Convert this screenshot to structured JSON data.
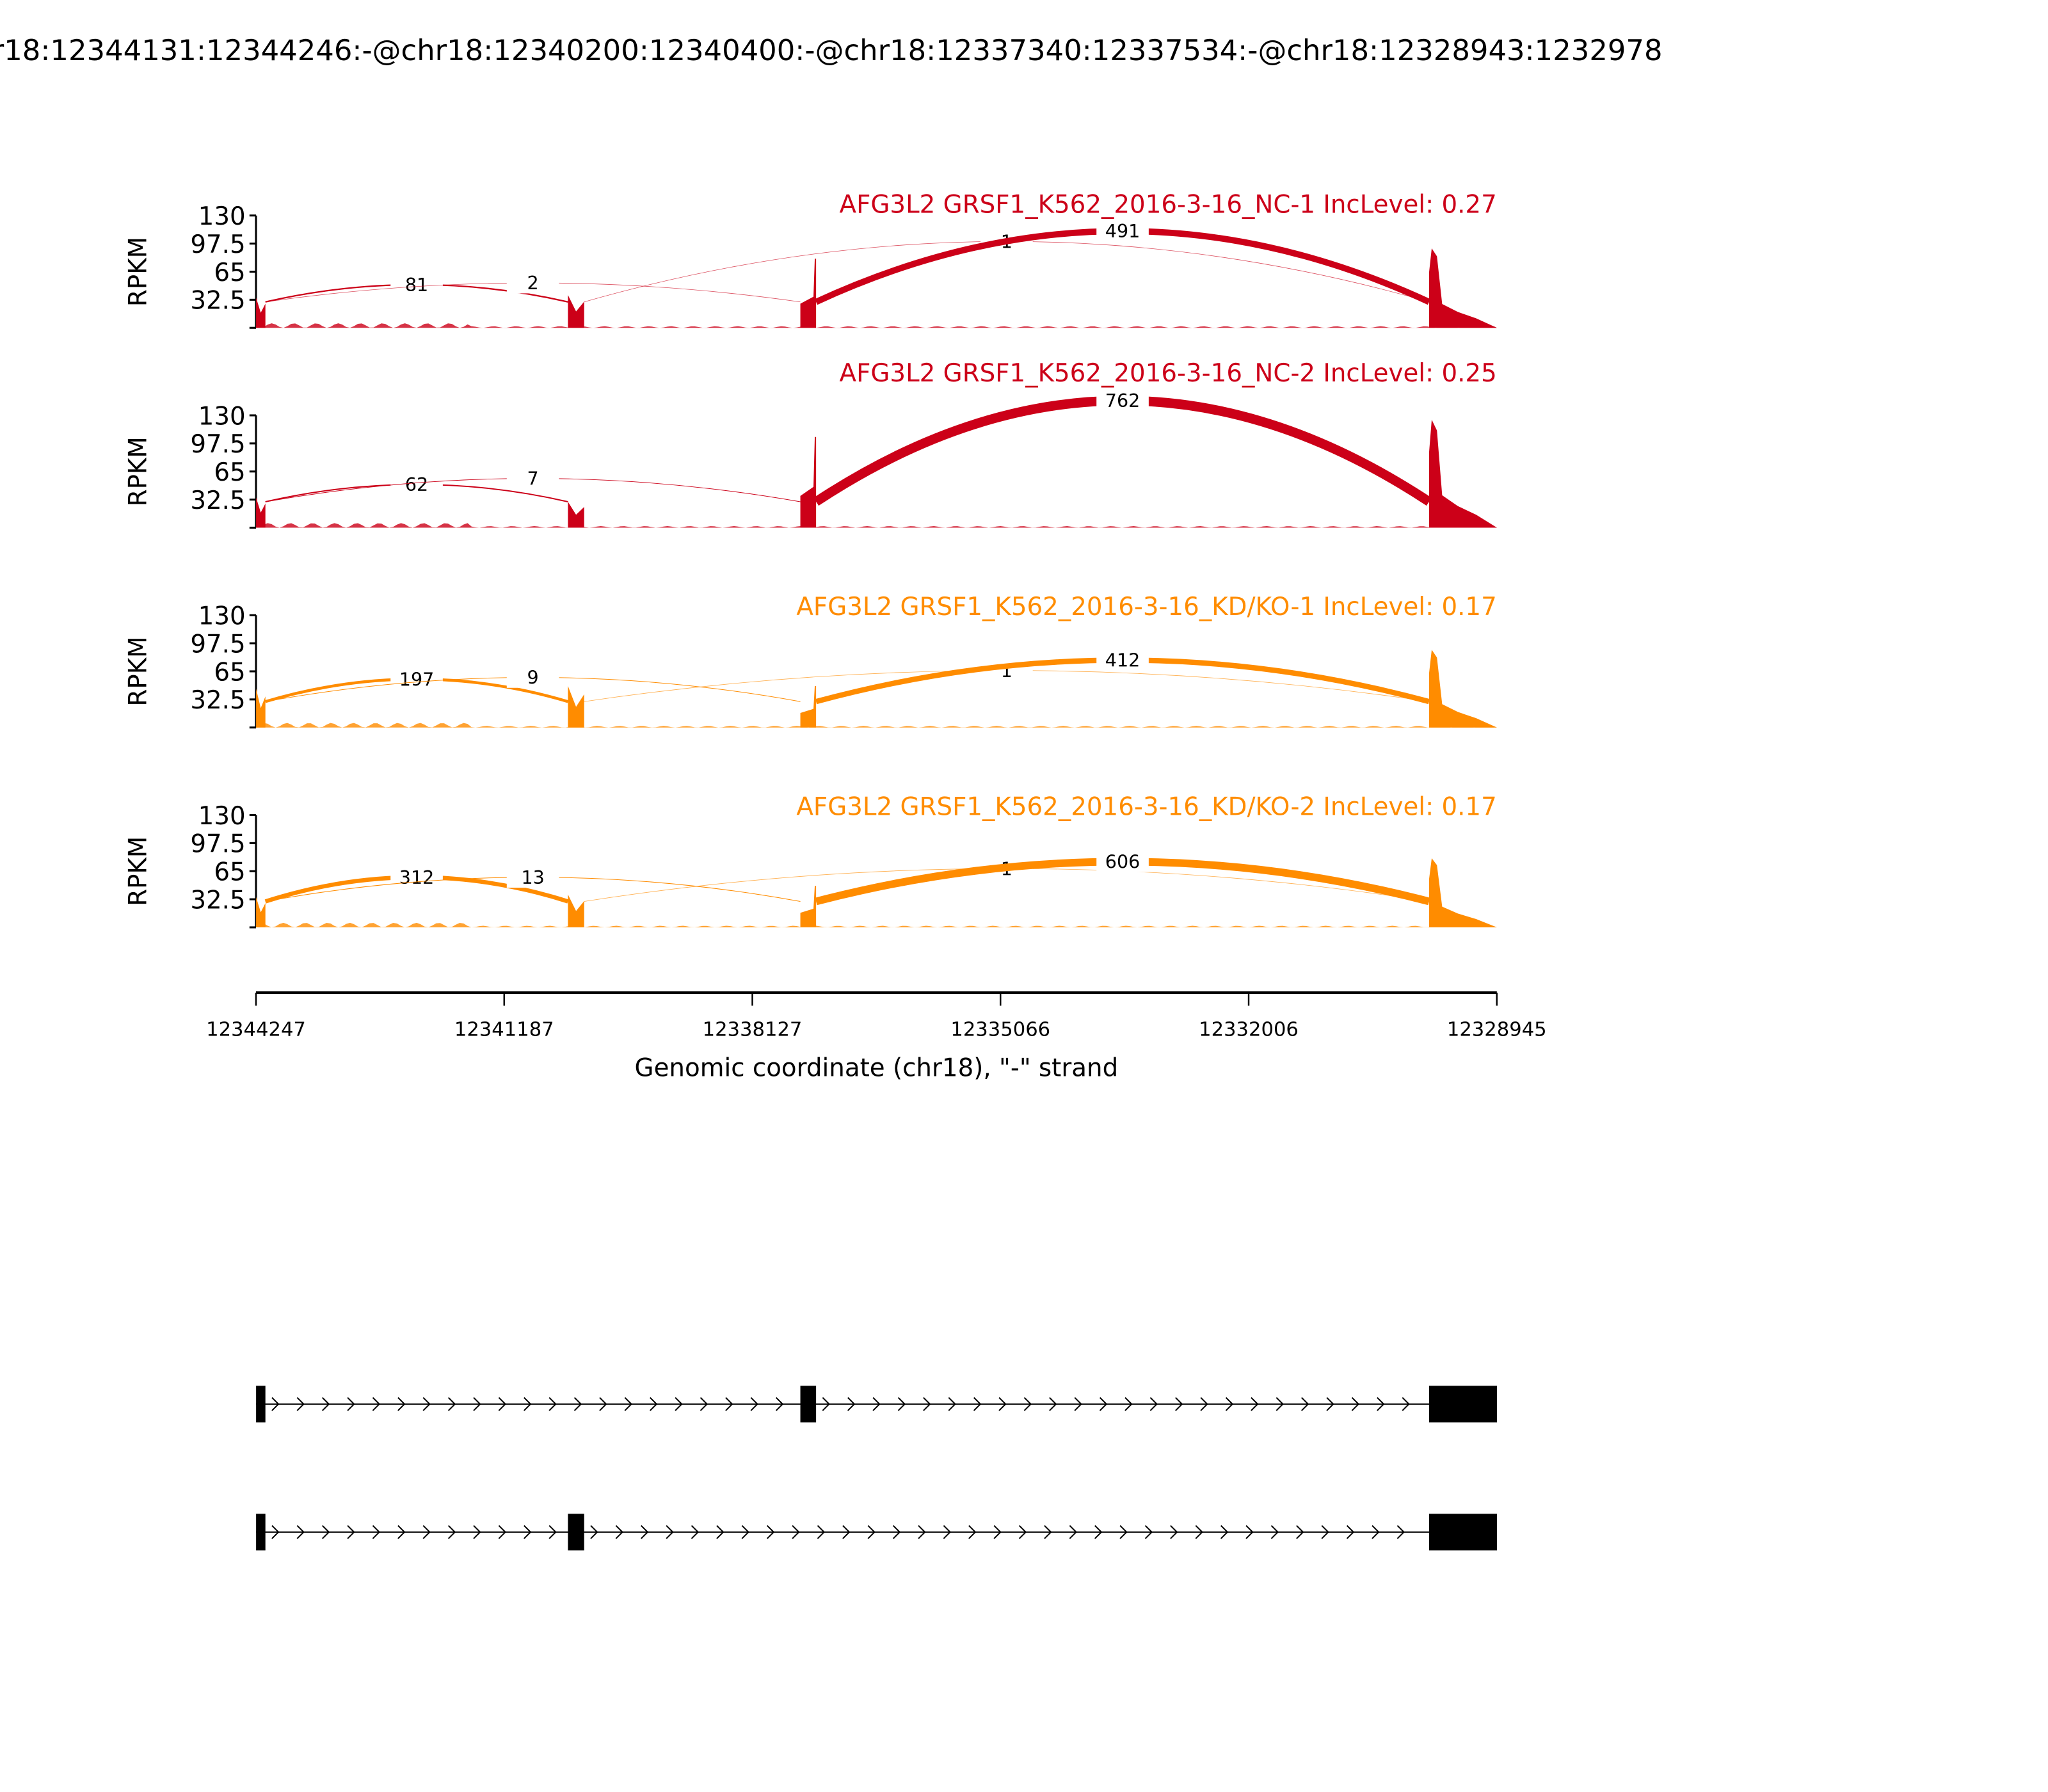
{
  "title": "r18:12344131:12344246:-@chr18:12340200:12340400:-@chr18:12337340:12337534:-@chr18:12328943:1232978",
  "colors": {
    "nc": "#cc0018",
    "kd": "#ff8c00",
    "axis": "#000000"
  },
  "chart_data": {
    "type": "sashimi",
    "ylabel": "RPKM",
    "ylim": [
      0,
      130
    ],
    "yticks": [
      "32.5",
      "65",
      "97.5",
      "130"
    ],
    "xlabel": "Genomic coordinate (chr18), \"-\" strand",
    "xlim": [
      12344247,
      12328945
    ],
    "xticks": [
      "12344247",
      "12341187",
      "12338127",
      "12335066",
      "12332006",
      "12328945"
    ],
    "exons": [
      {
        "start": 12344246,
        "end": 12344131
      },
      {
        "start": 12340400,
        "end": 12340200
      },
      {
        "start": 12337534,
        "end": 12337340
      },
      {
        "start": 12329780,
        "end": 12328943
      }
    ],
    "samples": [
      {
        "title": "AFG3L2 GRSF1_K562_2016-3-16_NC-1 IncLevel: 0.27",
        "color": "nc",
        "exon_coverage": [
          35,
          38,
          80,
          92
        ],
        "junctions": [
          {
            "from": 12344131,
            "to": 12340400,
            "count": "81",
            "peak": 50
          },
          {
            "from": 12344131,
            "to": 12337534,
            "count": "2",
            "peak": 52
          },
          {
            "from": 12340200,
            "to": 12329780,
            "count": "1",
            "peak": 100
          },
          {
            "from": 12337340,
            "to": 12329780,
            "count": "491",
            "peak": 112
          }
        ]
      },
      {
        "title": "AFG3L2 GRSF1_K562_2016-3-16_NC-2 IncLevel: 0.25",
        "color": "nc",
        "exon_coverage": [
          35,
          30,
          105,
          125
        ],
        "junctions": [
          {
            "from": 12344131,
            "to": 12340400,
            "count": "62",
            "peak": 50
          },
          {
            "from": 12344131,
            "to": 12337534,
            "count": "7",
            "peak": 57
          },
          {
            "from": 12337340,
            "to": 12329780,
            "count": "762",
            "peak": 147
          }
        ]
      },
      {
        "title": "AFG3L2 GRSF1_K562_2016-3-16_KD/KO-1 IncLevel: 0.17",
        "color": "kd",
        "exon_coverage": [
          45,
          48,
          48,
          90
        ],
        "junctions": [
          {
            "from": 12344131,
            "to": 12340400,
            "count": "197",
            "peak": 56
          },
          {
            "from": 12344131,
            "to": 12337534,
            "count": "9",
            "peak": 58
          },
          {
            "from": 12340200,
            "to": 12329780,
            "count": "1",
            "peak": 66
          },
          {
            "from": 12337340,
            "to": 12329780,
            "count": "412",
            "peak": 78
          }
        ]
      },
      {
        "title": "AFG3L2 GRSF1_K562_2016-3-16_KD/KO-2 IncLevel: 0.17",
        "color": "kd",
        "exon_coverage": [
          35,
          38,
          48,
          80
        ],
        "junctions": [
          {
            "from": 12344131,
            "to": 12340400,
            "count": "312",
            "peak": 58
          },
          {
            "from": 12344131,
            "to": 12337534,
            "count": "13",
            "peak": 58
          },
          {
            "from": 12340200,
            "to": 12329780,
            "count": "1",
            "peak": 68
          },
          {
            "from": 12337340,
            "to": 12329780,
            "count": "606",
            "peak": 76
          }
        ]
      }
    ],
    "transcripts": [
      {
        "exons": [
          0,
          2,
          3
        ]
      },
      {
        "exons": [
          0,
          1,
          3
        ]
      }
    ]
  }
}
